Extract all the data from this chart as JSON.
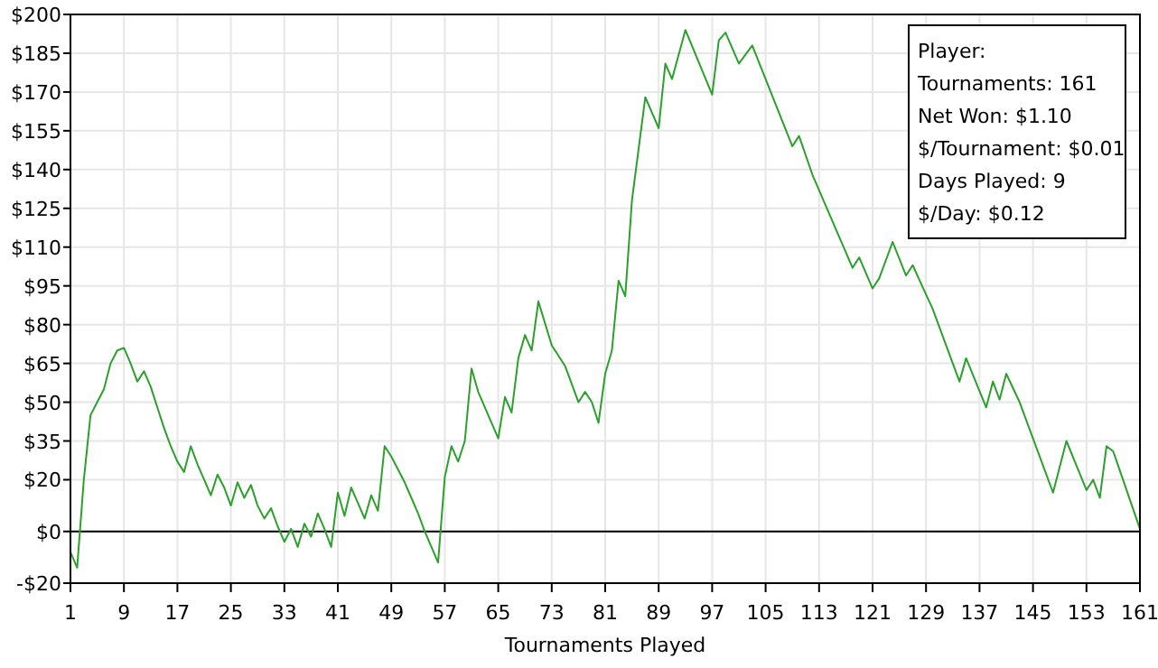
{
  "chart_data": {
    "type": "line",
    "xlabel": "Tournaments Played",
    "series": [
      {
        "color": "#2ca02c",
        "x": [
          1,
          2,
          3,
          4,
          5,
          6,
          7,
          8,
          9,
          10,
          11,
          12,
          13,
          14,
          15,
          16,
          17,
          18,
          19,
          20,
          21,
          22,
          23,
          24,
          25,
          26,
          27,
          28,
          29,
          30,
          31,
          32,
          33,
          34,
          35,
          36,
          37,
          38,
          39,
          40,
          41,
          42,
          43,
          44,
          45,
          46,
          47,
          48,
          49,
          50,
          51,
          52,
          53,
          54,
          55,
          56,
          57,
          58,
          59,
          60,
          61,
          62,
          65,
          66,
          67,
          68,
          69,
          70,
          71,
          73,
          75,
          77,
          78,
          79,
          80,
          81,
          82,
          83,
          84,
          85,
          87,
          89,
          90,
          91,
          93,
          97,
          98,
          99,
          101,
          103,
          107,
          109,
          110,
          112,
          118,
          119,
          121,
          122,
          124,
          126,
          127,
          130,
          134,
          135,
          138,
          139,
          140,
          141,
          143,
          148,
          150,
          153,
          154,
          155,
          156,
          157,
          161
        ],
        "values": [
          -8,
          -14,
          20,
          45,
          50,
          55,
          65,
          70,
          71,
          65,
          58,
          62,
          56,
          48,
          40,
          33,
          27,
          23,
          33,
          26,
          20,
          14,
          22,
          17,
          10,
          19,
          13,
          18,
          10,
          5,
          9,
          2,
          -4,
          1,
          -6,
          3,
          -2,
          7,
          1,
          -6,
          15,
          6,
          17,
          11,
          5,
          14,
          8,
          33,
          29,
          24,
          19,
          13,
          7,
          0,
          -6,
          -12,
          21,
          33,
          27,
          35,
          63,
          54,
          36,
          52,
          46,
          67,
          76,
          70,
          89,
          72,
          64,
          50,
          54,
          50,
          42,
          61,
          70,
          97,
          91,
          128,
          168,
          156,
          181,
          175,
          194,
          169,
          190,
          193,
          181,
          188,
          162,
          149,
          153,
          138,
          102,
          106,
          94,
          98,
          112,
          99,
          103,
          86,
          58,
          67,
          48,
          58,
          51,
          61,
          50,
          15,
          35,
          16,
          20,
          13,
          33,
          31,
          1
        ]
      }
    ],
    "xlim": [
      1,
      161
    ],
    "xticks": [
      1,
      9,
      17,
      25,
      33,
      41,
      49,
      57,
      65,
      73,
      81,
      89,
      97,
      105,
      113,
      121,
      129,
      137,
      145,
      153,
      161
    ],
    "ylim": [
      -20,
      200
    ],
    "yticks": [
      {
        "value": -20,
        "label": "-$20"
      },
      {
        "value": 0,
        "label": "$0"
      },
      {
        "value": 20,
        "label": "$20"
      },
      {
        "value": 35,
        "label": "$35"
      },
      {
        "value": 50,
        "label": "$50"
      },
      {
        "value": 65,
        "label": "$65"
      },
      {
        "value": 80,
        "label": "$80"
      },
      {
        "value": 95,
        "label": "$95"
      },
      {
        "value": 110,
        "label": "$110"
      },
      {
        "value": 125,
        "label": "$125"
      },
      {
        "value": 140,
        "label": "$140"
      },
      {
        "value": 155,
        "label": "$155"
      },
      {
        "value": 170,
        "label": "$170"
      },
      {
        "value": 185,
        "label": "$185"
      },
      {
        "value": 200,
        "label": "$200"
      }
    ],
    "grid": true,
    "ref_lines": [
      {
        "axis": "y",
        "value": 0,
        "color": "#000000"
      }
    ],
    "annotations": [
      "Player:",
      "Tournaments: 161",
      "Net Won: $1.10",
      "$/Tournament: $0.01",
      "Days Played: 9",
      "$/Day: $0.12"
    ]
  }
}
